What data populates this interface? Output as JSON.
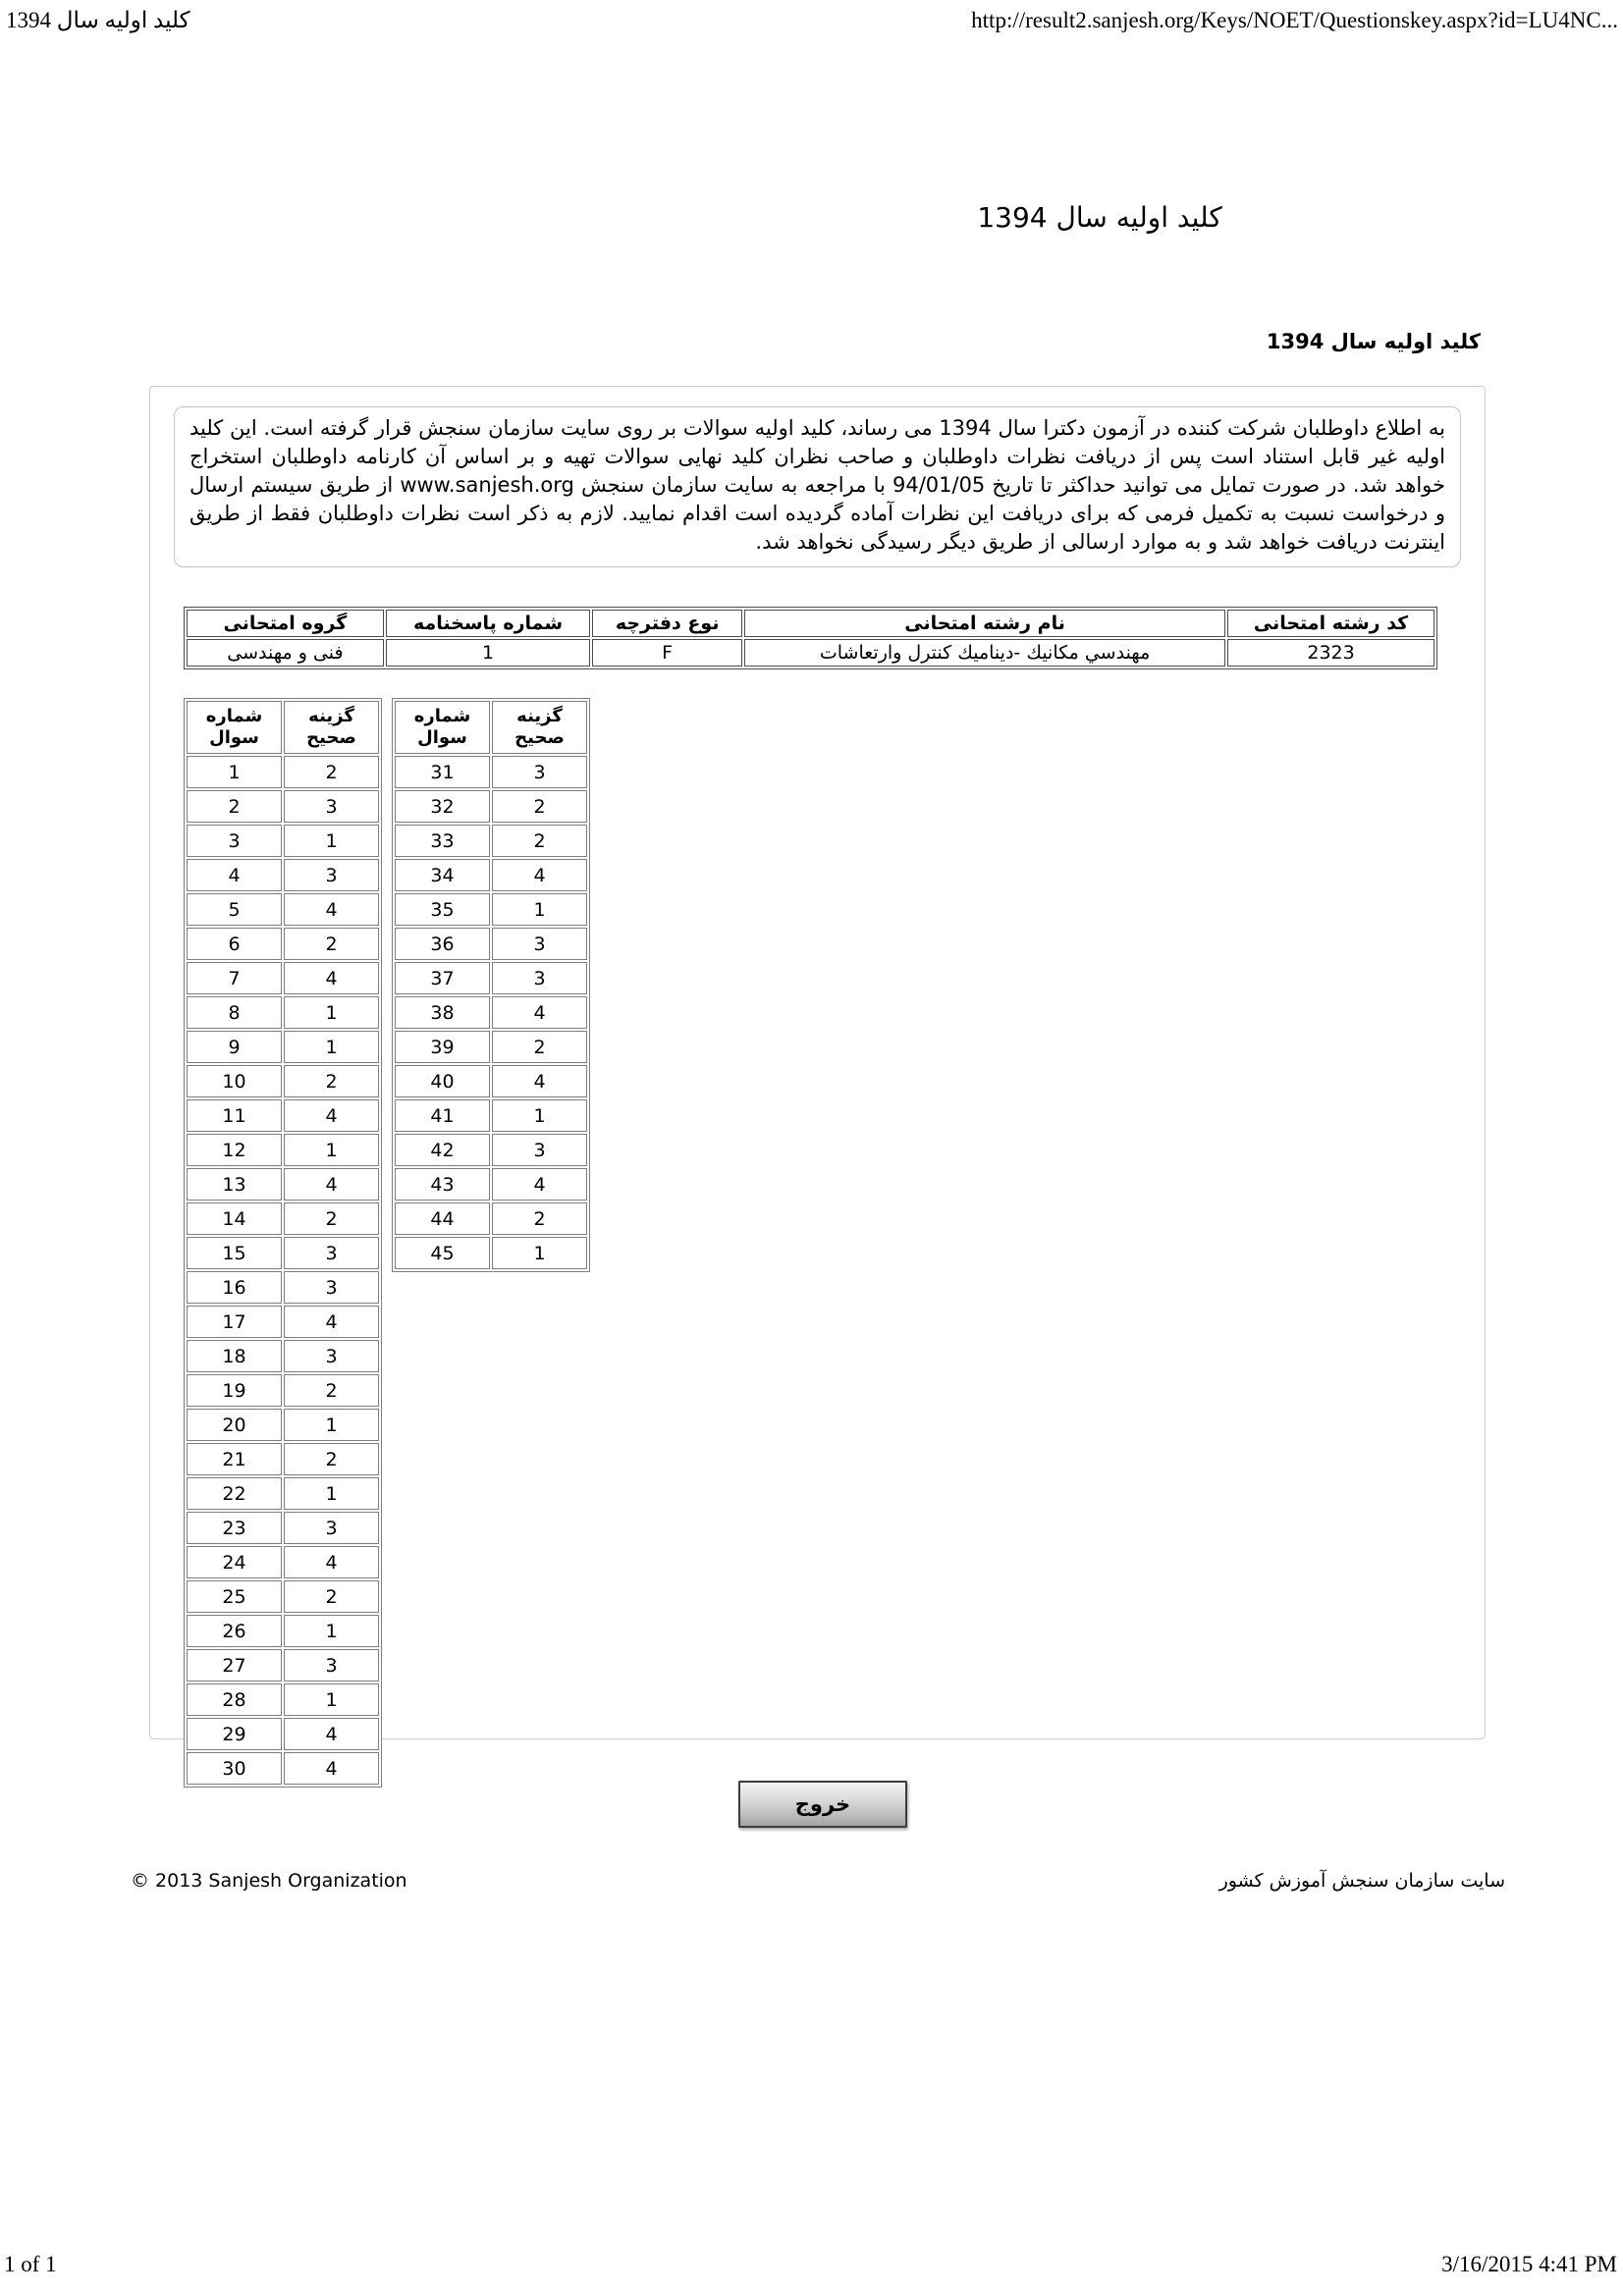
{
  "print_header": {
    "doc_title": "کلید اولیه سال 1394",
    "url": "http://result2.sanjesh.org/Keys/NOET/Questionskey.aspx?id=LU4NC..."
  },
  "page": {
    "title": "کلید اولیه سال 1394",
    "subtitle": "کلید اولیه سال 1394"
  },
  "notice": {
    "text": "به اطلاع داوطلبان شرکت کننده در آزمون دکترا سال 1394 می رساند، کلید اولیه سوالات بر روی سایت سازمان سنجش قرار گرفته است. این کلید اولیه غیر قابل استناد است پس از دریافت نظرات داوطلبان و صاحب نظران کلید نهایی سوالات تهیه و بر اساس آن کارنامه داوطلبان استخراج خواهد شد. در صورت تمایل می توانید حداکثر تا تاریخ 94/01/05 با مراجعه به سایت سازمان سنجش www.sanjesh.org از طریق  سیستم ارسال و درخواست نسبت به تکمیل فرمی که برای دریافت این نظرات آماده گردیده است اقدام نمایید. لازم به ذکر است نظرات داوطلبان فقط از طریق اینترنت دریافت خواهد شد و به موارد ارسالی از طریق دیگر رسیدگی نخواهد شد."
  },
  "info_table": {
    "headers": [
      "کد رشته امتحانی",
      "نام رشته امتحانی",
      "نوع دفترچه",
      "شماره پاسخنامه",
      "گروه امتحانی"
    ],
    "row": [
      "2323",
      "مهندسي مكانيك -ديناميك كنترل وارتعاشات",
      "F",
      "1",
      "فنی و مهندسی"
    ]
  },
  "answer_tables": {
    "col_question": "شماره سوال",
    "col_answer": "گزینه صحیح",
    "table1": [
      [
        1,
        2
      ],
      [
        2,
        3
      ],
      [
        3,
        1
      ],
      [
        4,
        3
      ],
      [
        5,
        4
      ],
      [
        6,
        2
      ],
      [
        7,
        4
      ],
      [
        8,
        1
      ],
      [
        9,
        1
      ],
      [
        10,
        2
      ],
      [
        11,
        4
      ],
      [
        12,
        1
      ],
      [
        13,
        4
      ],
      [
        14,
        2
      ],
      [
        15,
        3
      ],
      [
        16,
        3
      ],
      [
        17,
        4
      ],
      [
        18,
        3
      ],
      [
        19,
        2
      ],
      [
        20,
        1
      ],
      [
        21,
        2
      ],
      [
        22,
        1
      ],
      [
        23,
        3
      ],
      [
        24,
        4
      ],
      [
        25,
        2
      ],
      [
        26,
        1
      ],
      [
        27,
        3
      ],
      [
        28,
        1
      ],
      [
        29,
        4
      ],
      [
        30,
        4
      ]
    ],
    "table2": [
      [
        31,
        3
      ],
      [
        32,
        2
      ],
      [
        33,
        2
      ],
      [
        34,
        4
      ],
      [
        35,
        1
      ],
      [
        36,
        3
      ],
      [
        37,
        3
      ],
      [
        38,
        4
      ],
      [
        39,
        2
      ],
      [
        40,
        4
      ],
      [
        41,
        1
      ],
      [
        42,
        3
      ],
      [
        43,
        4
      ],
      [
        44,
        2
      ],
      [
        45,
        1
      ]
    ]
  },
  "exit_button_label": "خروج",
  "footer": {
    "copyright": "© 2013 Sanjesh Organization",
    "site_name": "سایت سازمان سنجش آموزش کشور"
  },
  "print_footer": {
    "page_count": "1 of 1",
    "timestamp": "3/16/2015 4:41 PM"
  }
}
